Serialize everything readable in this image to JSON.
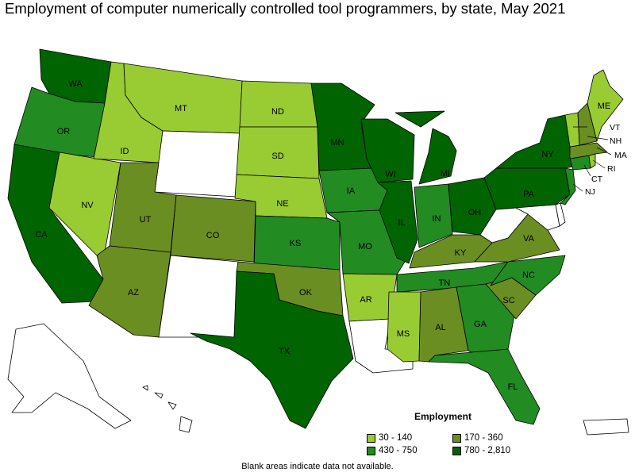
{
  "title": "Employment of computer numerically controlled tool programmers, by state, May 2021",
  "legend": {
    "title": "Employment",
    "bins": [
      {
        "label": "30 - 140",
        "color": "#99cc33"
      },
      {
        "label": "170 - 360",
        "color": "#6b8e23"
      },
      {
        "label": "430 - 750",
        "color": "#228b22"
      },
      {
        "label": "780 - 2,810",
        "color": "#006400"
      }
    ],
    "no_data_color": "#ffffff"
  },
  "footnote": "Blank areas indicate data not available.",
  "states": {
    "WA": {
      "bin": 3
    },
    "OR": {
      "bin": 2
    },
    "CA": {
      "bin": 3
    },
    "NV": {
      "bin": 0
    },
    "ID": {
      "bin": 0
    },
    "MT": {
      "bin": 0
    },
    "WY": {
      "bin": null
    },
    "UT": {
      "bin": 1
    },
    "AZ": {
      "bin": 1
    },
    "CO": {
      "bin": 1
    },
    "NM": {
      "bin": null
    },
    "ND": {
      "bin": 0
    },
    "SD": {
      "bin": 0
    },
    "NE": {
      "bin": 0
    },
    "KS": {
      "bin": 2
    },
    "OK": {
      "bin": 1
    },
    "TX": {
      "bin": 3
    },
    "MN": {
      "bin": 3
    },
    "IA": {
      "bin": 2
    },
    "MO": {
      "bin": 2
    },
    "AR": {
      "bin": 0
    },
    "LA": {
      "bin": null
    },
    "WI": {
      "bin": 3
    },
    "IL": {
      "bin": 3
    },
    "MI": {
      "bin": 3
    },
    "IN": {
      "bin": 2
    },
    "OH": {
      "bin": 3
    },
    "KY": {
      "bin": 1
    },
    "TN": {
      "bin": 2
    },
    "MS": {
      "bin": 0
    },
    "AL": {
      "bin": 1
    },
    "GA": {
      "bin": 2
    },
    "FL": {
      "bin": 2
    },
    "SC": {
      "bin": 1
    },
    "NC": {
      "bin": 2
    },
    "VA": {
      "bin": 1
    },
    "WV": {
      "bin": null
    },
    "PA": {
      "bin": 3
    },
    "NY": {
      "bin": 3
    },
    "VT": {
      "bin": 0
    },
    "NH": {
      "bin": 1
    },
    "ME": {
      "bin": 0
    },
    "MA": {
      "bin": 1
    },
    "RI": {
      "bin": 0
    },
    "CT": {
      "bin": 2
    },
    "NJ": {
      "bin": 2
    },
    "DE": {
      "bin": null
    },
    "MD": {
      "bin": null
    },
    "AK": {
      "bin": null
    },
    "HI": {
      "bin": null
    },
    "PR": {
      "bin": null
    }
  }
}
